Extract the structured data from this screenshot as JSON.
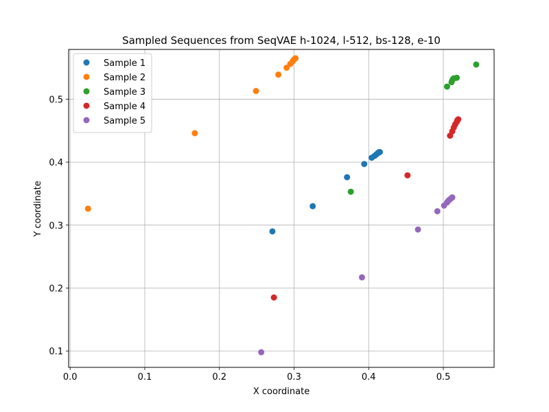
{
  "chart_data": {
    "type": "scatter",
    "title": "Sampled Sequences from SeqVAE h-1024, l-512, bs-128, e-10",
    "xlabel": "X coordinate",
    "ylabel": "Y coordinate",
    "xlim": [
      -0.002,
      0.568
    ],
    "ylim": [
      0.074,
      0.579
    ],
    "xticks": [
      0.0,
      0.1,
      0.2,
      0.3,
      0.4,
      0.5
    ],
    "xtick_labels": [
      "0.0",
      "0.1",
      "0.2",
      "0.3",
      "0.4",
      "0.5"
    ],
    "yticks": [
      0.1,
      0.2,
      0.3,
      0.4,
      0.5
    ],
    "ytick_labels": [
      "0.1",
      "0.2",
      "0.3",
      "0.4",
      "0.5"
    ],
    "grid": true,
    "legend_position": "top-left",
    "series": [
      {
        "name": "Sample 1",
        "color": "#1f77b4",
        "points": [
          [
            0.271,
            0.29
          ],
          [
            0.325,
            0.33
          ],
          [
            0.371,
            0.376
          ],
          [
            0.394,
            0.397
          ],
          [
            0.404,
            0.407
          ],
          [
            0.408,
            0.41
          ],
          [
            0.41,
            0.412
          ],
          [
            0.412,
            0.414
          ],
          [
            0.413,
            0.415
          ],
          [
            0.414,
            0.416
          ],
          [
            0.415,
            0.416
          ]
        ]
      },
      {
        "name": "Sample 2",
        "color": "#ff7f0e",
        "points": [
          [
            0.024,
            0.326
          ],
          [
            0.167,
            0.446
          ],
          [
            0.249,
            0.513
          ],
          [
            0.279,
            0.539
          ],
          [
            0.29,
            0.55
          ],
          [
            0.295,
            0.556
          ],
          [
            0.298,
            0.56
          ],
          [
            0.3,
            0.563
          ],
          [
            0.301,
            0.564
          ],
          [
            0.302,
            0.565
          ]
        ]
      },
      {
        "name": "Sample 3",
        "color": "#2ca02c",
        "points": [
          [
            0.376,
            0.353
          ],
          [
            0.505,
            0.52
          ],
          [
            0.511,
            0.527
          ],
          [
            0.512,
            0.53
          ],
          [
            0.513,
            0.532
          ],
          [
            0.514,
            0.533
          ],
          [
            0.518,
            0.534
          ],
          [
            0.544,
            0.555
          ]
        ]
      },
      {
        "name": "Sample 4",
        "color": "#d62728",
        "points": [
          [
            0.273,
            0.185
          ],
          [
            0.452,
            0.379
          ],
          [
            0.509,
            0.442
          ],
          [
            0.512,
            0.449
          ],
          [
            0.514,
            0.455
          ],
          [
            0.516,
            0.46
          ],
          [
            0.518,
            0.464
          ],
          [
            0.519,
            0.467
          ],
          [
            0.52,
            0.468
          ]
        ]
      },
      {
        "name": "Sample 5",
        "color": "#9467bd",
        "points": [
          [
            0.256,
            0.098
          ],
          [
            0.391,
            0.217
          ],
          [
            0.466,
            0.293
          ],
          [
            0.492,
            0.322
          ],
          [
            0.501,
            0.331
          ],
          [
            0.505,
            0.336
          ],
          [
            0.507,
            0.339
          ],
          [
            0.509,
            0.341
          ],
          [
            0.511,
            0.343
          ],
          [
            0.512,
            0.344
          ]
        ]
      }
    ]
  }
}
